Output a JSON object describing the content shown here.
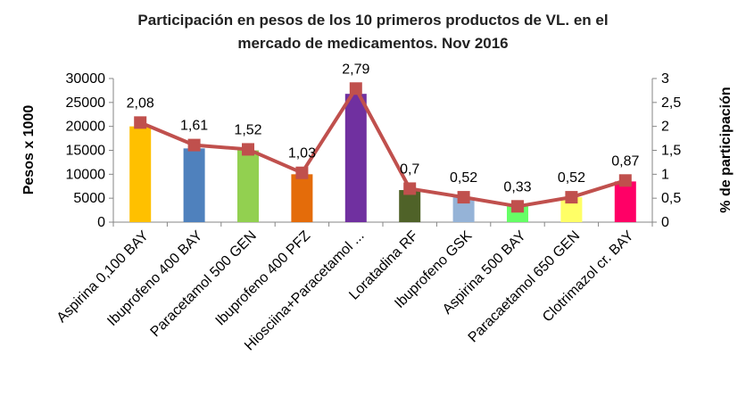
{
  "chart_data": {
    "type": "bar",
    "title_line1": "Participación en pesos de los 10 primeros productos de VL. en el",
    "title_line2": "mercado de medicamentos. Nov 2016",
    "ylabel": "Pesos x 1000",
    "y2label": "% de participación",
    "ylim": [
      0,
      30000
    ],
    "y2lim": [
      0,
      3
    ],
    "yticks": [
      "0",
      "5000",
      "10000",
      "15000",
      "20000",
      "25000",
      "30000"
    ],
    "y2ticks": [
      "0",
      "0,5",
      "1",
      "1,5",
      "2",
      "2,5",
      "3"
    ],
    "categories": [
      "Aspirina 0,100 BAY",
      "Ibuprofeno 400 BAY",
      "Paracetamol 500 GEN",
      "Ibuprofeno 400 PFZ",
      "Hiosciina+Paracetamol ...",
      "Loratadina RF",
      "Ibuprofeno  GSK",
      "Aspirina 500 BAY",
      "Paracaetamol 650 GEN",
      "Clotrimazol cr. BAY"
    ],
    "series": [
      {
        "type": "bar",
        "values": [
          20000,
          15400,
          15000,
          10000,
          26800,
          6700,
          5200,
          3300,
          5200,
          8500
        ],
        "colors": [
          "#FFC000",
          "#4F81BD",
          "#92D050",
          "#E46C0A",
          "#7030A0",
          "#4F6228",
          "#95B3D7",
          "#66FF66",
          "#FFFF66",
          "#FF0066"
        ]
      },
      {
        "type": "line",
        "axis": "right",
        "values": [
          2.08,
          1.61,
          1.52,
          1.03,
          2.79,
          0.7,
          0.52,
          0.33,
          0.52,
          0.87
        ],
        "labels": [
          "2,08",
          "1,61",
          "1,52",
          "1,03",
          "2,79",
          "0,7",
          "0,52",
          "0,33",
          "0,52",
          "0,87"
        ],
        "color": "#C0504D"
      }
    ],
    "grid": false,
    "legend": "none"
  }
}
